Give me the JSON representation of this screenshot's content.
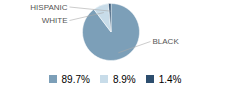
{
  "chart_data": {
    "type": "pie",
    "categories": [
      "BLACK",
      "WHITE",
      "HISPANIC"
    ],
    "values": [
      89.7,
      8.9,
      1.4
    ],
    "value_labels": [
      "89.7%",
      "8.9%",
      "1.4%"
    ],
    "colors": [
      "#7c9fb8",
      "#c8dce9",
      "#2d4e6e"
    ],
    "legend": "bottom"
  }
}
